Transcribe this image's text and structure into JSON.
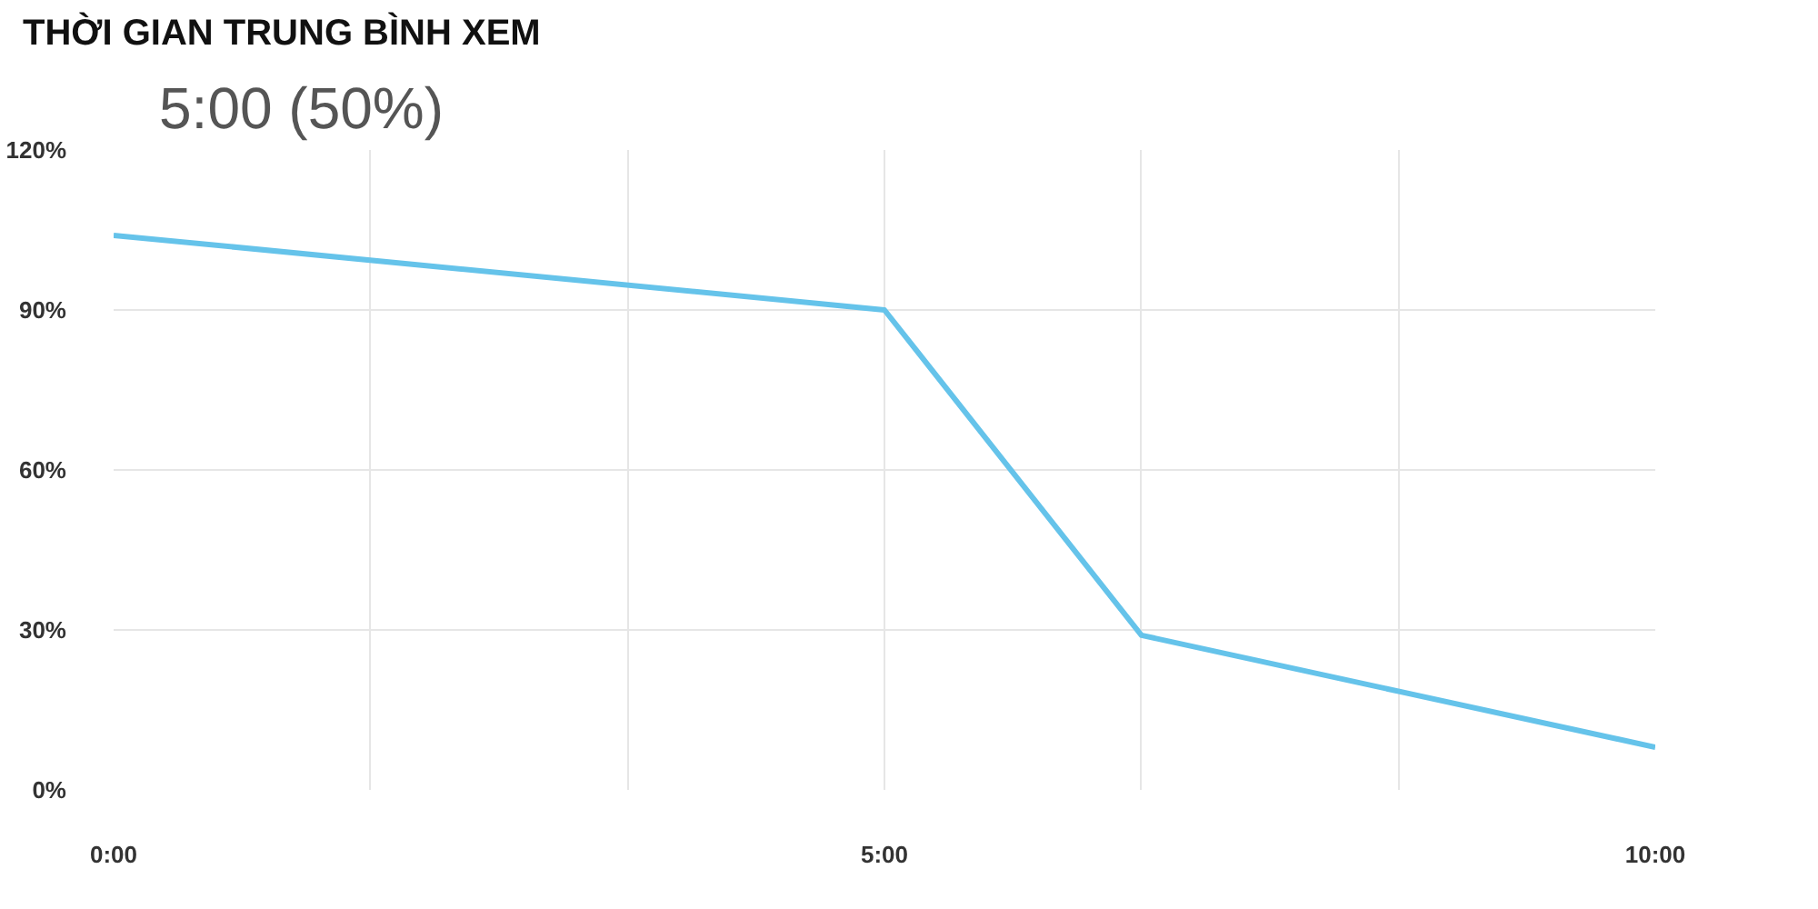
{
  "chart_data": {
    "type": "line",
    "title": "THỜI GIAN TRUNG BÌNH XEM",
    "subtitle": "5:00 (50%)",
    "x": [
      0,
      5,
      6.667,
      10
    ],
    "series": [
      {
        "color": "#65c3ea",
        "values": [
          104,
          90,
          29,
          8
        ]
      }
    ],
    "xlim": [
      0,
      10
    ],
    "xticks": [
      {
        "value": 0,
        "label": "0:00"
      },
      {
        "value": 1.667,
        "label": null
      },
      {
        "value": 3.333,
        "label": null
      },
      {
        "value": 5,
        "label": "5:00"
      },
      {
        "value": 6.667,
        "label": null
      },
      {
        "value": 8.333,
        "label": null
      },
      {
        "value": 10,
        "label": "10:00"
      }
    ],
    "ylim": [
      0,
      120
    ],
    "yticks": [
      {
        "value": 0,
        "label": "0%"
      },
      {
        "value": 30,
        "label": "30%"
      },
      {
        "value": 60,
        "label": "60%"
      },
      {
        "value": 90,
        "label": "90%"
      },
      {
        "value": 120,
        "label": "120%"
      }
    ],
    "grid": true,
    "marker": "none",
    "line_style": "solid"
  }
}
